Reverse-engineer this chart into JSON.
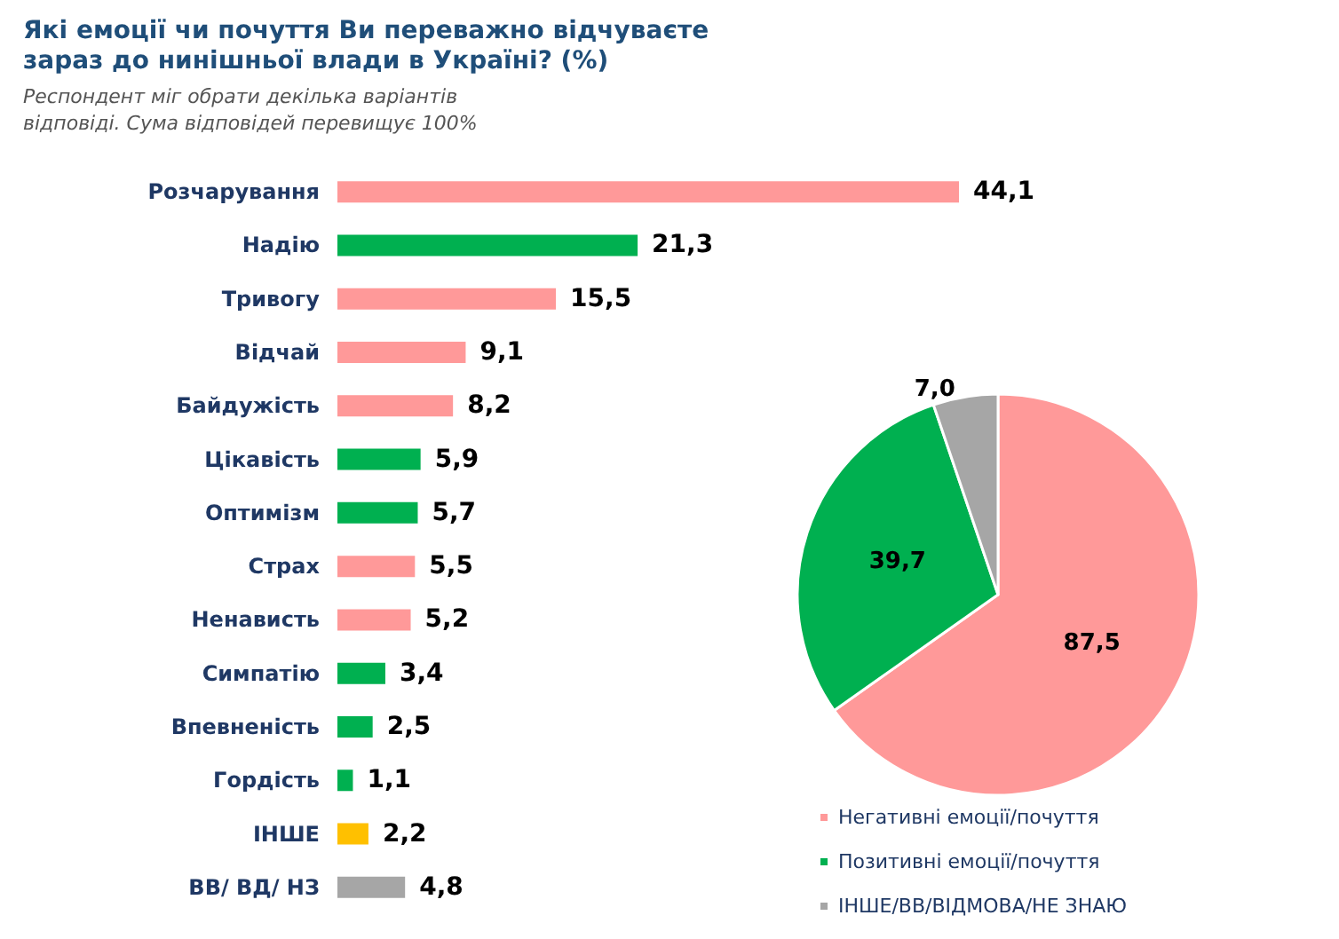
{
  "chart_data": [
    {
      "type": "bar",
      "orientation": "horizontal",
      "title": "Які емоції чи почуття Ви переважно відчуваєте зараз до нинішньої влади в Україні? (%)",
      "subtitle": "Респондент міг обрати декілька варіантів відповіді. Сума відповідей перевищує 100%",
      "categories": [
        "Розчарування",
        "Надію",
        "Тривогу",
        "Відчай",
        "Байдужість",
        "Цікавість",
        "Оптимізм",
        "Страх",
        "Ненависть",
        "Симпатію",
        "Впевненість",
        "Гордість",
        "ІНШЕ",
        "ВВ/ ВД/ НЗ"
      ],
      "values": [
        44.1,
        21.3,
        15.5,
        9.1,
        8.2,
        5.9,
        5.7,
        5.5,
        5.2,
        3.4,
        2.5,
        1.1,
        2.2,
        4.8
      ],
      "value_labels": [
        "44,1",
        "21,3",
        "15,5",
        "9,1",
        "8,2",
        "5,9",
        "5,7",
        "5,5",
        "5,2",
        "3,4",
        "2,5",
        "1,1",
        "2,2",
        "4,8"
      ],
      "colors": [
        "#ff9999",
        "#00b050",
        "#ff9999",
        "#ff9999",
        "#ff9999",
        "#00b050",
        "#00b050",
        "#ff9999",
        "#ff9999",
        "#00b050",
        "#00b050",
        "#00b050",
        "#ffc000",
        "#a6a6a6"
      ],
      "tick_labels": "y",
      "legend": false
    },
    {
      "type": "pie",
      "categories": [
        "Негативні емоції/почуття",
        "Позитивні емоції/почуття",
        "ІНШЕ/ВВ/ВІДМОВА/НЕ ЗНАЮ"
      ],
      "values": [
        87.5,
        39.7,
        7.0
      ],
      "value_labels": [
        "87,5",
        "39,7",
        "7,0"
      ],
      "colors": [
        "#ff9999",
        "#00b050",
        "#a6a6a6"
      ],
      "legend": "bottom"
    }
  ]
}
